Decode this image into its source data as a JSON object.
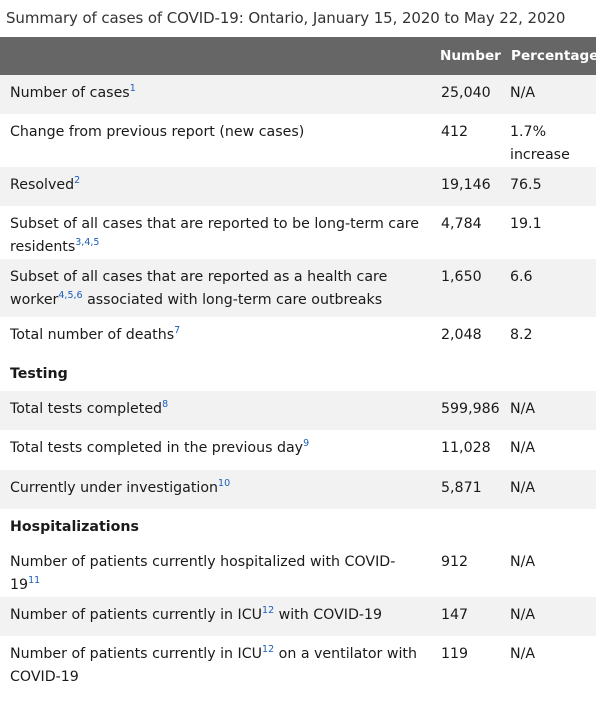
{
  "caption": "Summary of cases of COVID-19: Ontario, January 15, 2020 to May 22, 2020",
  "header": {
    "label": "",
    "number": "Number",
    "percentage": "Percentage"
  },
  "rows": [
    {
      "label_a": "Number of cases",
      "sup_a": "1",
      "label_b": "",
      "sup_b": "",
      "label_c": "",
      "number": "25,040",
      "pct": "N/A"
    },
    {
      "label_a": "Change from previous report (new cases)",
      "sup_a": "",
      "label_b": "",
      "sup_b": "",
      "label_c": "",
      "number": "412",
      "pct": "1.7% increase"
    },
    {
      "label_a": "Resolved",
      "sup_a": "2",
      "label_b": "",
      "sup_b": "",
      "label_c": "",
      "number": "19,146",
      "pct": "76.5"
    },
    {
      "label_a": "Subset of all cases that are reported to be long-term care residents",
      "sup_a": "3,4,5",
      "label_b": "",
      "sup_b": "",
      "label_c": "",
      "number": "4,784",
      "pct": "19.1"
    },
    {
      "label_a": "Subset of all cases that are reported as a health care worker",
      "sup_a": "4,5,6",
      "label_b": " associated with long-term care outbreaks",
      "sup_b": "",
      "label_c": "",
      "number": "1,650",
      "pct": "6.6"
    },
    {
      "label_a": "Total number of deaths",
      "sup_a": "7",
      "label_b": "",
      "sup_b": "",
      "label_c": "",
      "number": "2,048",
      "pct": "8.2"
    },
    {
      "section": "Testing"
    },
    {
      "label_a": "Total tests completed",
      "sup_a": "8",
      "label_b": "",
      "sup_b": "",
      "label_c": "",
      "number": "599,986",
      "pct": "N/A"
    },
    {
      "label_a": "Total tests completed in the previous day",
      "sup_a": "9",
      "label_b": "",
      "sup_b": "",
      "label_c": "",
      "number": "11,028",
      "pct": "N/A"
    },
    {
      "label_a": "Currently under investigation",
      "sup_a": "10",
      "label_b": "",
      "sup_b": "",
      "label_c": "",
      "number": "5,871",
      "pct": "N/A"
    },
    {
      "section": "Hospitalizations"
    },
    {
      "label_a": "Number of patients currently hospitalized with COVID-19",
      "sup_a": "11",
      "label_b": "",
      "sup_b": "",
      "label_c": "",
      "number": "912",
      "pct": "N/A"
    },
    {
      "label_a": "Number of patients currently in ICU",
      "sup_a": "12",
      "label_b": " with COVID-19",
      "sup_b": "",
      "label_c": "",
      "number": "147",
      "pct": "N/A"
    },
    {
      "label_a": "Number of patients currently in ICU",
      "sup_a": "12",
      "label_b": " on a ventilator with COVID-19",
      "sup_b": "",
      "label_c": "",
      "number": "119",
      "pct": "N/A"
    }
  ]
}
